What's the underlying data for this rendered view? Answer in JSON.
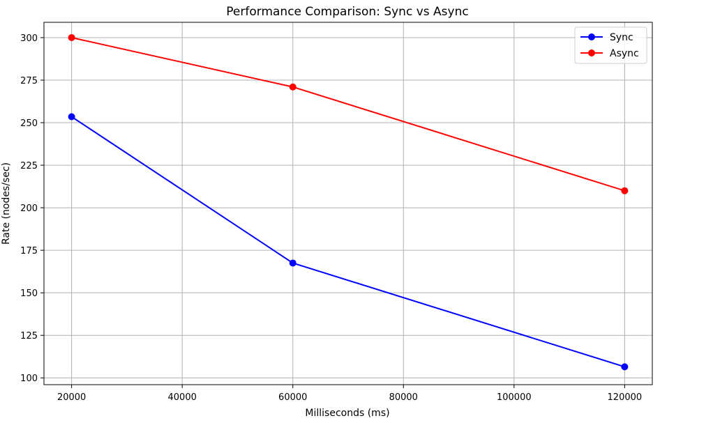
{
  "chart_data": {
    "type": "line",
    "title": "Performance Comparison: Sync vs Async",
    "xlabel": "Milliseconds (ms)",
    "ylabel": "Rate (nodes/sec)",
    "xlim": [
      15000,
      125000
    ],
    "ylim": [
      96,
      309
    ],
    "x_ticks": [
      20000,
      40000,
      60000,
      80000,
      100000,
      120000
    ],
    "y_ticks": [
      100,
      125,
      150,
      175,
      200,
      225,
      250,
      275,
      300
    ],
    "grid": true,
    "legend_position": "top-right",
    "x": [
      20000,
      60000,
      120000
    ],
    "series": [
      {
        "name": "Sync",
        "color": "#0000ff",
        "marker": "circle",
        "values": [
          253.5,
          167.5,
          106.5
        ]
      },
      {
        "name": "Async",
        "color": "#ff0000",
        "marker": "circle",
        "values": [
          300,
          271,
          210
        ]
      }
    ]
  }
}
